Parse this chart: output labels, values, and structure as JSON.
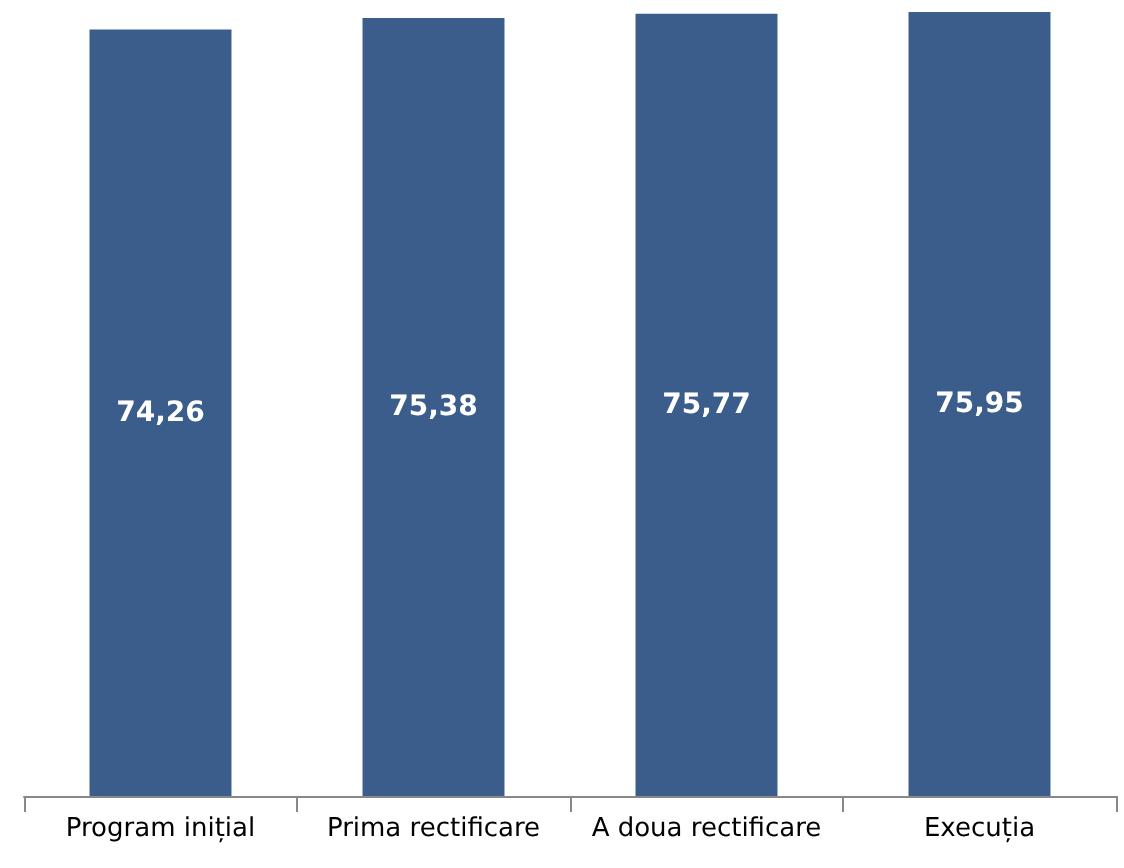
{
  "chart_data": {
    "type": "bar",
    "categories": [
      "Program inițial",
      "Prima rectificare",
      "A doua rectificare",
      "Execuția"
    ],
    "values": [
      74.26,
      75.38,
      75.77,
      75.95
    ],
    "value_labels": [
      "74,26",
      "75,38",
      "75,77",
      "75,95"
    ],
    "color": "#3a5d8c",
    "tick_labels": "x"
  }
}
